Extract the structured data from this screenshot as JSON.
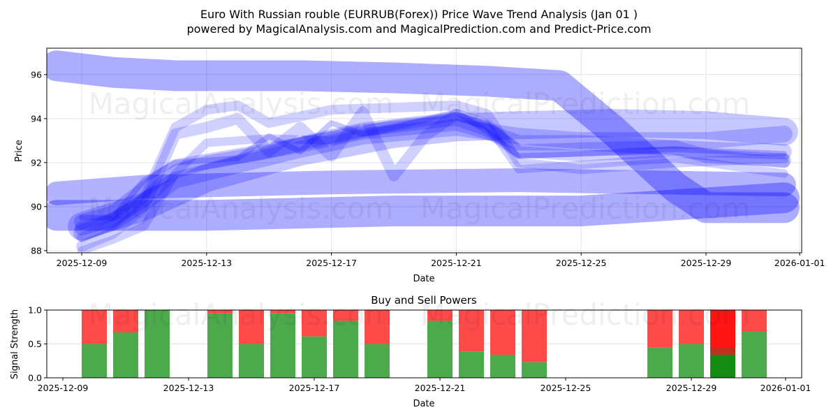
{
  "title": {
    "line1": "Euro With Russian rouble (EURRUB(Forex)) Price Wave Trend Analysis (Jan 01 )",
    "line2": "powered by MagicalAnalysis.com and MagicalPrediction.com and Predict-Price.com"
  },
  "watermarks": [
    "MagicalAnalysis.com",
    "MagicalPrediction.com"
  ],
  "chart_data": [
    {
      "type": "line",
      "title": "",
      "xlabel": "Date",
      "ylabel": "Price",
      "ylim": [
        87.9,
        97.2
      ],
      "yticks": [
        88,
        90,
        92,
        94,
        96
      ],
      "xticks": [
        "2025-12-09",
        "2025-12-13",
        "2025-12-17",
        "2025-12-21",
        "2025-12-25",
        "2025-12-29",
        "2026-01-01"
      ],
      "xtick_days": [
        0,
        4,
        8,
        12,
        16,
        20,
        23
      ],
      "grid": true,
      "color": "#0000ff",
      "series": [
        {
          "name": "wave-high",
          "width": 44,
          "opacity": 0.32,
          "points": [
            [
              -0.8,
              96.4
            ],
            [
              1,
              96.1
            ],
            [
              3,
              95.95
            ],
            [
              7,
              95.95
            ],
            [
              10,
              95.85
            ],
            [
              13,
              95.7
            ],
            [
              15.3,
              95.5
            ],
            [
              17,
              93.5
            ],
            [
              19,
              90.9
            ],
            [
              20,
              89.95
            ],
            [
              22.5,
              89.95
            ]
          ]
        },
        {
          "name": "wave-flat-upper",
          "width": 34,
          "opacity": 0.3,
          "points": [
            [
              -0.8,
              90.6
            ],
            [
              2,
              90.9
            ],
            [
              8,
              91.1
            ],
            [
              14,
              91.2
            ],
            [
              22.5,
              91.0
            ]
          ]
        },
        {
          "name": "wave-flat-lower",
          "width": 44,
          "opacity": 0.32,
          "points": [
            [
              -0.8,
              89.6
            ],
            [
              4,
              89.6
            ],
            [
              10,
              89.8
            ],
            [
              16,
              89.8
            ],
            [
              22.5,
              90.4
            ]
          ]
        },
        {
          "name": "wave-1",
          "width": 14,
          "opacity": 0.18,
          "points": [
            [
              0,
              88.6
            ],
            [
              1,
              89.2
            ],
            [
              2,
              90.4
            ],
            [
              3,
              93.6
            ],
            [
              4,
              94.4
            ],
            [
              5,
              94.6
            ],
            [
              6,
              93.8
            ],
            [
              7,
              94.1
            ],
            [
              8,
              94.4
            ],
            [
              10,
              94.5
            ],
            [
              12,
              94.6
            ],
            [
              13,
              94.2
            ],
            [
              14,
              92.0
            ],
            [
              16,
              91.7
            ],
            [
              19,
              92.0
            ],
            [
              22.5,
              92.2
            ]
          ]
        },
        {
          "name": "wave-2",
          "width": 16,
          "opacity": 0.18,
          "points": [
            [
              0,
              88.2
            ],
            [
              1,
              88.8
            ],
            [
              2,
              90.0
            ],
            [
              3,
              93.3
            ],
            [
              4,
              93.6
            ],
            [
              5,
              94.0
            ],
            [
              6,
              92.5
            ],
            [
              7,
              93.6
            ],
            [
              8,
              92.3
            ],
            [
              9,
              94.3
            ],
            [
              10,
              91.4
            ],
            [
              11,
              93.2
            ],
            [
              12,
              94.2
            ],
            [
              13,
              93.7
            ],
            [
              14,
              92.5
            ],
            [
              16,
              92.3
            ],
            [
              19,
              92.5
            ],
            [
              22.5,
              92.0
            ]
          ]
        },
        {
          "name": "wave-3",
          "width": 20,
          "opacity": 0.2,
          "points": [
            [
              0,
              89.0
            ],
            [
              1,
              89.4
            ],
            [
              2,
              90.3
            ],
            [
              3,
              91.6
            ],
            [
              4,
              92.0
            ],
            [
              6,
              92.5
            ],
            [
              8,
              93.2
            ],
            [
              9,
              93.5
            ],
            [
              12,
              94.0
            ],
            [
              13,
              93.5
            ],
            [
              14,
              92.5
            ],
            [
              16,
              92.6
            ],
            [
              19,
              92.7
            ],
            [
              20,
              92.3
            ],
            [
              22.5,
              92.1
            ]
          ]
        },
        {
          "name": "wave-4",
          "width": 22,
          "opacity": 0.2,
          "points": [
            [
              0,
              89.3
            ],
            [
              1,
              89.7
            ],
            [
              2,
              90.8
            ],
            [
              3,
              91.8
            ],
            [
              5,
              92.3
            ],
            [
              7,
              92.8
            ],
            [
              9,
              93.4
            ],
            [
              12,
              93.8
            ],
            [
              13,
              93.4
            ],
            [
              14,
              92.9
            ],
            [
              16,
              92.9
            ],
            [
              20,
              92.6
            ],
            [
              22.5,
              92.5
            ]
          ]
        },
        {
          "name": "wave-5",
          "width": 24,
          "opacity": 0.2,
          "points": [
            [
              0,
              88.8
            ],
            [
              1,
              89.3
            ],
            [
              2,
              90.2
            ],
            [
              3,
              91.2
            ],
            [
              5,
              91.9
            ],
            [
              7,
              92.6
            ],
            [
              9,
              93.2
            ],
            [
              12,
              93.6
            ],
            [
              14,
              93.2
            ],
            [
              16,
              93.0
            ],
            [
              20,
              93.0
            ],
            [
              22.5,
              93.3
            ]
          ]
        },
        {
          "name": "wave-6",
          "width": 40,
          "opacity": 0.22,
          "points": [
            [
              0,
              89.1
            ],
            [
              2,
              90.0
            ],
            [
              4,
              91.3
            ],
            [
              7,
              92.5
            ],
            [
              10,
              93.3
            ],
            [
              12,
              93.6
            ],
            [
              14,
              93.7
            ],
            [
              17,
              93.8
            ],
            [
              20,
              93.7
            ],
            [
              22.5,
              93.4
            ]
          ]
        },
        {
          "name": "wave-7",
          "width": 12,
          "opacity": 0.18,
          "points": [
            [
              0,
              88.0
            ],
            [
              1,
              88.5
            ],
            [
              2,
              89.1
            ],
            [
              3,
              91.5
            ],
            [
              4,
              92.9
            ],
            [
              6,
              93.1
            ],
            [
              8,
              93.0
            ],
            [
              10,
              93.6
            ],
            [
              12,
              94.1
            ],
            [
              13,
              93.7
            ],
            [
              14,
              91.7
            ],
            [
              16,
              91.9
            ],
            [
              19,
              92.2
            ],
            [
              22.5,
              91.5
            ]
          ]
        },
        {
          "name": "wave-8",
          "width": 8,
          "opacity": 0.22,
          "points": [
            [
              0,
              89.5
            ],
            [
              1,
              89.5
            ],
            [
              2,
              91.2
            ],
            [
              3,
              92.0
            ],
            [
              5,
              92.2
            ],
            [
              6,
              93.2
            ],
            [
              7,
              92.5
            ],
            [
              8,
              93.8
            ],
            [
              9,
              93.3
            ],
            [
              10,
              93.6
            ],
            [
              12,
              94.3
            ],
            [
              13,
              93.4
            ],
            [
              14,
              92.3
            ],
            [
              16,
              92.4
            ],
            [
              19,
              92.6
            ],
            [
              22.5,
              92.4
            ]
          ]
        }
      ]
    },
    {
      "type": "bar",
      "title": "Buy and Sell Powers",
      "xlabel": "Date",
      "ylabel": "Signal Strength",
      "ylim": [
        0,
        1.0
      ],
      "yticks": [
        "0.0",
        "0.5",
        "1.0"
      ],
      "xticks": [
        "2025-12-09",
        "2025-12-13",
        "2025-12-17",
        "2025-12-21",
        "2025-12-25",
        "2025-12-29",
        "2026-01-01"
      ],
      "xtick_days": [
        0,
        4,
        8,
        12,
        16,
        20,
        23
      ],
      "buy_color": "#4caa4c",
      "sell_color": "#ff4a4a",
      "categories": [
        "2025-12-10",
        "2025-12-11",
        "2025-12-12",
        "2025-12-14",
        "2025-12-15",
        "2025-12-16",
        "2025-12-17",
        "2025-12-18",
        "2025-12-19",
        "2025-12-21",
        "2025-12-22",
        "2025-12-23",
        "2025-12-24",
        "2025-12-28",
        "2025-12-29",
        "2025-12-30",
        "2025-12-31"
      ],
      "days": [
        1,
        2,
        3,
        5,
        6,
        7,
        8,
        9,
        10,
        12,
        13,
        14,
        15,
        19,
        20,
        21,
        22
      ],
      "buy": [
        0.5,
        0.67,
        1.0,
        0.95,
        0.5,
        0.95,
        0.61,
        0.84,
        0.5,
        0.84,
        0.39,
        0.34,
        0.23,
        0.45,
        0.5,
        0.34,
        0.68
      ],
      "highlight": {
        "day": 21,
        "buy": 0.34,
        "overlap_to": 0.45,
        "buy_color": "#148c14",
        "sell_color": "#ff1414",
        "overlap_color": "#c03020"
      }
    }
  ]
}
